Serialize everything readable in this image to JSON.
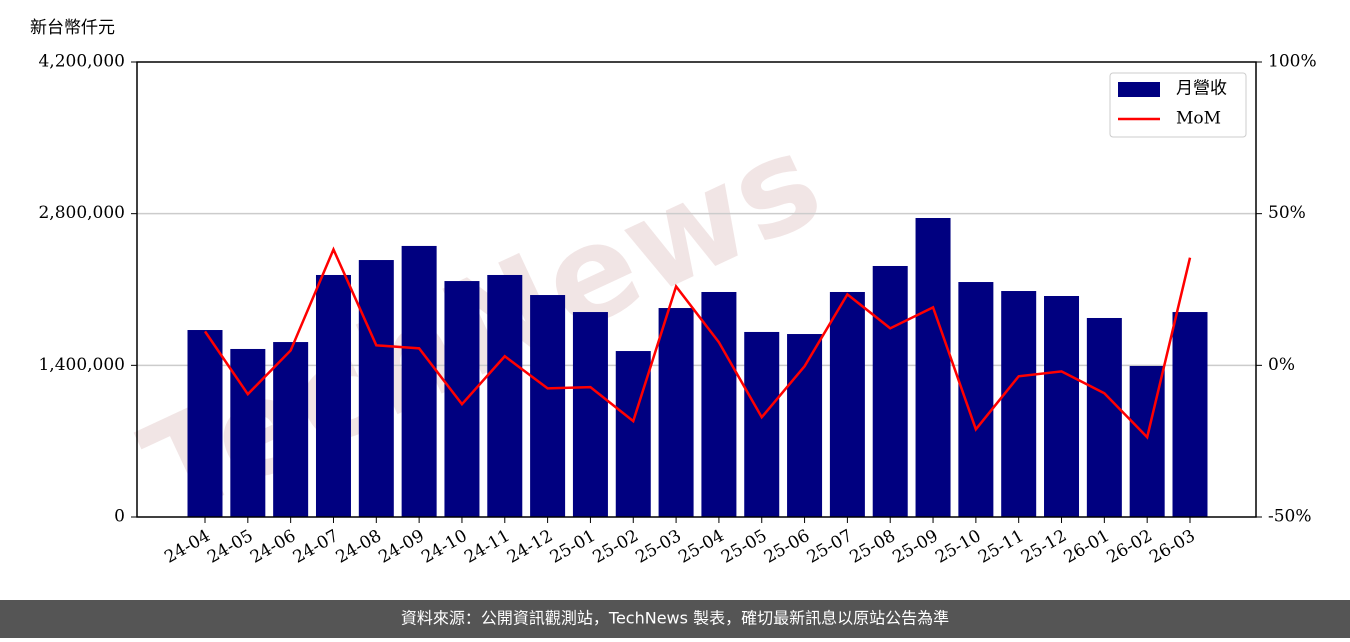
{
  "chart_data": {
    "type": "bar_line",
    "y_label": "新台幣仟元",
    "watermark": "TechNews",
    "footer": "資料來源：公開資訊觀測站，TechNews 製表，確切最新訊息以原站公告為準",
    "categories": [
      "24-04",
      "24-05",
      "24-06",
      "24-07",
      "24-08",
      "24-09",
      "24-10",
      "24-11",
      "24-12",
      "25-01",
      "25-02",
      "25-03",
      "25-04",
      "25-05",
      "25-06",
      "25-07",
      "25-08",
      "25-09",
      "25-10",
      "25-11",
      "25-12",
      "26-01",
      "26-02",
      "26-03"
    ],
    "series": [
      {
        "name": "月營收",
        "type": "bar",
        "color": "#000080",
        "values": [
          1726000,
          1551000,
          1615000,
          2234000,
          2372000,
          2502000,
          2178000,
          2234000,
          2049000,
          1892000,
          1532000,
          1929000,
          2077000,
          1708000,
          1689000,
          2077000,
          2317000,
          2760000,
          2169000,
          2086000,
          2040000,
          1837000,
          1394000,
          1892000
        ]
      },
      {
        "name": "MoM",
        "type": "line",
        "axis": "y2",
        "color": "#ff0000",
        "values": [
          11.2,
          -9.5,
          4.9,
          38.2,
          6.6,
          5.6,
          -12.8,
          3.0,
          -7.6,
          -7.2,
          -18.4,
          26.0,
          7.6,
          -17.1,
          -0.3,
          23.4,
          12.2,
          19.1,
          -21.1,
          -3.6,
          -2.0,
          -9.2,
          -23.7,
          35.5
        ]
      }
    ],
    "ylim": [
      0,
      4200000
    ],
    "yticks": [
      0,
      {
        "value": 1400000,
        "label": "1,400,000"
      },
      {
        "value": 2800000,
        "label": "2,800,000"
      },
      {
        "value": 4200000,
        "label": "4,200,000"
      }
    ],
    "y2lim": [
      -50,
      100
    ],
    "y2ticks": [
      {
        "value": -50,
        "label": "-50%"
      },
      {
        "value": 0,
        "label": "0%"
      },
      {
        "value": 50,
        "label": "50%"
      },
      {
        "value": 100,
        "label": "100%"
      }
    ],
    "grid": true,
    "legend": "upper right"
  }
}
